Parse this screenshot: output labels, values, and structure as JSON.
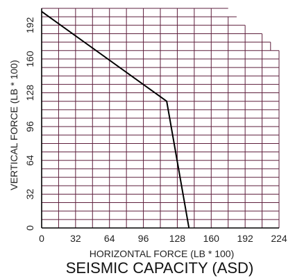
{
  "chart_data": {
    "type": "line",
    "title": "SEISMIC CAPACITY (ASD)",
    "xlabel": "HORIZONTAL FORCE (LB * 100)",
    "ylabel": "VERTICAL FORCE (LB * 100)",
    "xlim": [
      0,
      224
    ],
    "ylim": [
      0,
      208
    ],
    "x_ticks": [
      "0",
      "32",
      "64",
      "96",
      "128",
      "160",
      "192",
      "224"
    ],
    "y_ticks": [
      "0",
      "32",
      "64",
      "96",
      "128",
      "160",
      "192"
    ],
    "grid": true,
    "grid_step": 16,
    "series": [
      {
        "points": [
          {
            "x": 0,
            "y": 205
          },
          {
            "x": 118,
            "y": 120
          },
          {
            "x": 139,
            "y": 0
          }
        ]
      }
    ],
    "colors": {
      "grid": "#5e1f3c",
      "line": "#000000",
      "text": "#222222"
    }
  }
}
